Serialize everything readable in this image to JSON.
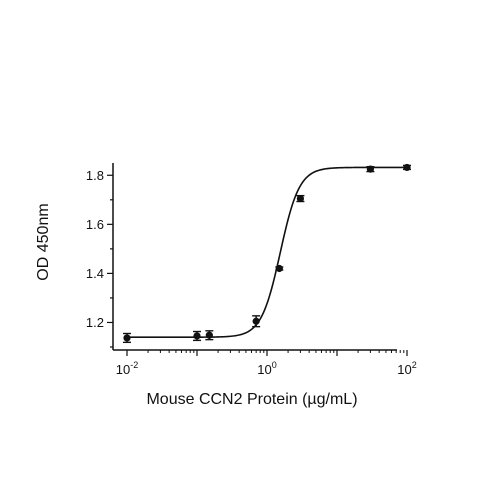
{
  "chart_data": {
    "type": "scatter",
    "title": "",
    "xlabel": "Mouse CCN2 Protein (µg/mL)",
    "ylabel": "OD 450nm",
    "x_scale": "log10",
    "xlim": [
      0.01,
      100
    ],
    "ylim": [
      1.1,
      1.85
    ],
    "x_ticks": [
      {
        "value": 0.01,
        "base": "10",
        "exp": "-2"
      },
      {
        "value": 1,
        "base": "10",
        "exp": "0"
      },
      {
        "value": 100,
        "base": "10",
        "exp": "2"
      }
    ],
    "y_ticks": [
      {
        "value": 1.2,
        "label": "1.2"
      },
      {
        "value": 1.4,
        "label": "1.4"
      },
      {
        "value": 1.6,
        "label": "1.6"
      },
      {
        "value": 1.8,
        "label": "1.8"
      }
    ],
    "grid": false,
    "legend": "none",
    "marker_color": "#111111",
    "series": [
      {
        "x": [
          0.01,
          0.1,
          0.15,
          0.7,
          1.5,
          3.0,
          30,
          100
        ],
        "y": [
          1.137,
          1.145,
          1.148,
          1.205,
          1.42,
          1.705,
          1.825,
          1.832
        ],
        "error": [
          0.018,
          0.018,
          0.018,
          0.022,
          0.006,
          0.012,
          0.01,
          0.008
        ]
      }
    ],
    "fit_curve": {
      "model": "4PL",
      "bottom": 1.14,
      "top": 1.832,
      "ec50": 1.55,
      "hill": 3.2
    }
  }
}
